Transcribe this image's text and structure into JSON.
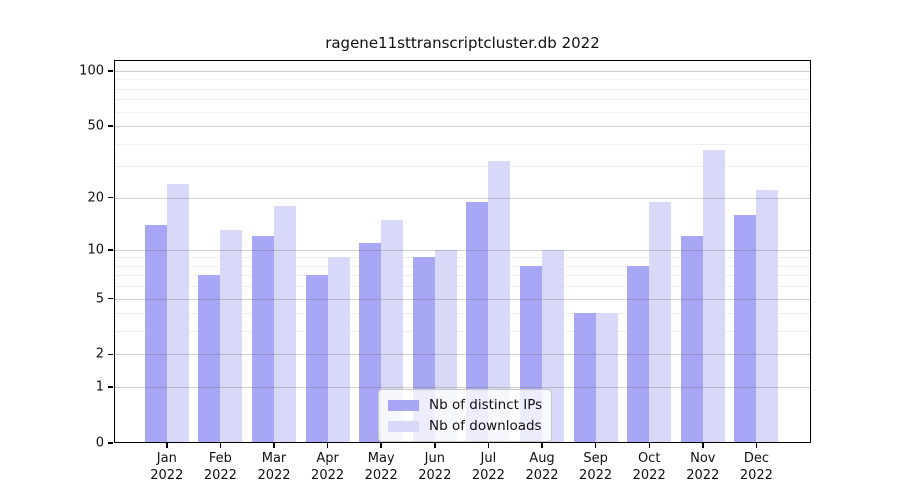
{
  "figure": {
    "background_color": "#ffffff",
    "frame_color": "#000000"
  },
  "chart_data": {
    "type": "bar",
    "title": "ragene11sttranscriptcluster.db 2022",
    "xlabel": "",
    "ylabel": "",
    "months": [
      "Jan",
      "Feb",
      "Mar",
      "Apr",
      "May",
      "Jun",
      "Jul",
      "Aug",
      "Sep",
      "Oct",
      "Nov",
      "Dec"
    ],
    "year": "2022",
    "series": [
      {
        "name": "Nb of distinct IPs",
        "color": "#a7a7f5",
        "values": [
          14,
          7,
          12,
          7,
          11,
          9,
          19,
          8,
          4,
          8,
          12,
          16
        ]
      },
      {
        "name": "Nb of downloads",
        "color": "#d8d8f8",
        "values": [
          24,
          13,
          18,
          9,
          15,
          10,
          32,
          10,
          4,
          19,
          37,
          22
        ]
      }
    ],
    "y_axis": {
      "scale": "log1p",
      "ticks": [
        0,
        1,
        2,
        5,
        10,
        20,
        50,
        100
      ],
      "minor_gridlines": [
        3,
        4,
        6,
        7,
        8,
        9,
        30,
        40,
        60,
        70,
        80,
        90
      ],
      "max": 100
    },
    "legend": {
      "position": "bottom-center",
      "entries": [
        "Nb of distinct IPs",
        "Nb of downloads"
      ]
    },
    "grid": "on"
  }
}
